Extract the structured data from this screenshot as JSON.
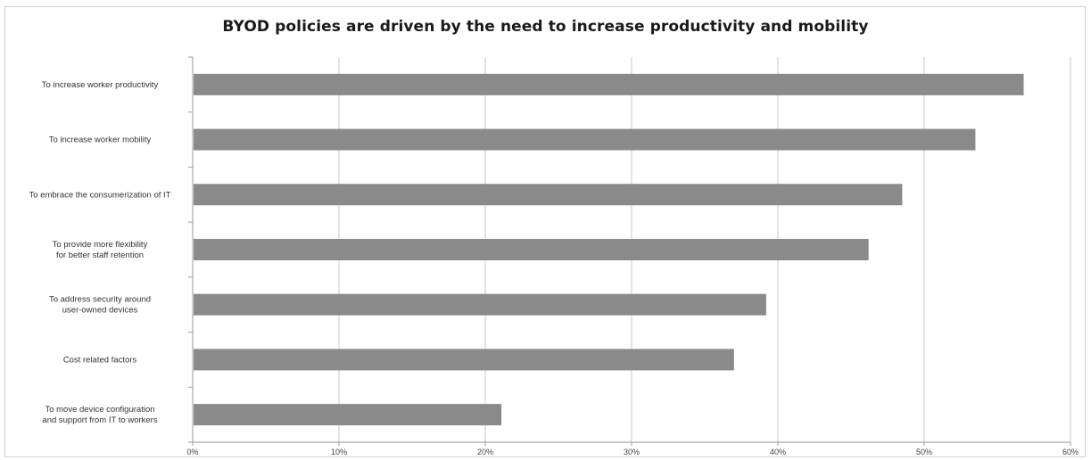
{
  "chart_data": {
    "type": "bar",
    "orientation": "horizontal",
    "title": "BYOD policies are driven by the need to increase productivity and mobility",
    "xlabel": "",
    "ylabel": "",
    "categories": [
      [
        "To increase worker productivity"
      ],
      [
        "To increase worker mobility"
      ],
      [
        "To embrace the consumerization of IT"
      ],
      [
        "To provide more flexibility",
        "for better staff retention"
      ],
      [
        "To address security around",
        "user-owned devices"
      ],
      [
        "Cost related factors"
      ],
      [
        "To move device configuration",
        "and support from IT to workers"
      ]
    ],
    "values": [
      56.8,
      53.5,
      48.5,
      46.2,
      39.2,
      37.0,
      21.1
    ],
    "xlim": [
      0,
      60
    ],
    "xticks": [
      0,
      10,
      20,
      30,
      40,
      50,
      60
    ],
    "xtick_labels": [
      "0%",
      "10%",
      "20%",
      "30%",
      "40%",
      "50%",
      "60%"
    ],
    "grid": "vertical",
    "legend": "none",
    "colors": {
      "bar": "#8a8a8a",
      "grid": "#c8c8c8",
      "axis": "#9a9a9a"
    }
  }
}
